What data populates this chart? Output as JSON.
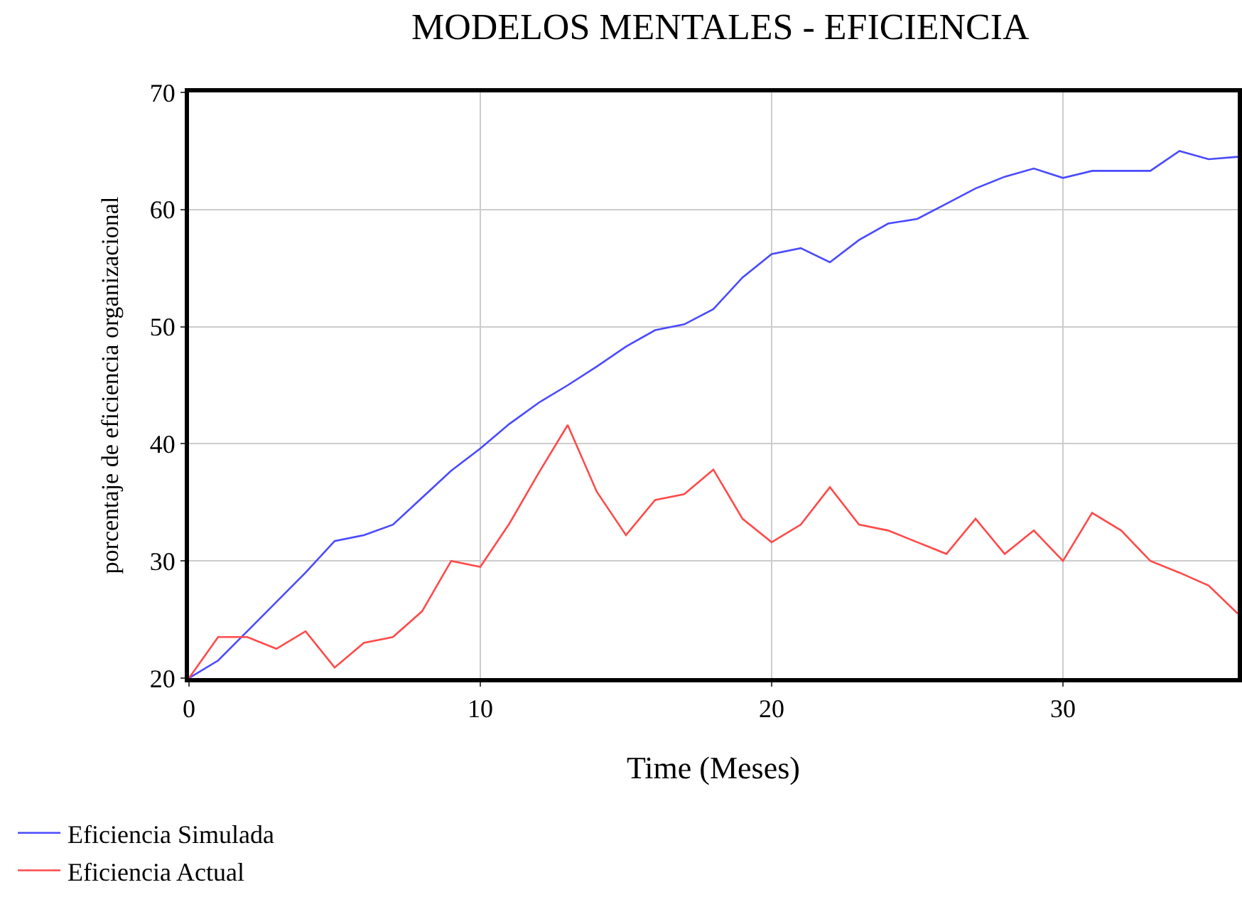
{
  "chart_data": {
    "type": "line",
    "title": "MODELOS MENTALES - EFICIENCIA",
    "xlabel": "Time (Meses)",
    "ylabel": "porcentaje de eficiencia organizacional",
    "x": [
      0,
      1,
      2,
      3,
      4,
      5,
      6,
      7,
      8,
      9,
      10,
      11,
      12,
      13,
      14,
      15,
      16,
      17,
      18,
      19,
      20,
      21,
      22,
      23,
      24,
      25,
      26,
      27,
      28,
      29,
      30,
      31,
      32,
      33,
      34,
      35,
      36
    ],
    "series": [
      {
        "name": "Eficiencia Simulada",
        "color": "#4a4aff",
        "values": [
          20,
          21.5,
          24,
          26.5,
          29,
          31.7,
          32.2,
          33.1,
          35.4,
          37.7,
          39.6,
          41.7,
          43.5,
          45,
          46.6,
          48.3,
          49.7,
          50.2,
          51.5,
          54.2,
          56.2,
          56.7,
          55.5,
          57.4,
          58.8,
          59.2,
          60.5,
          61.8,
          62.8,
          63.5,
          62.7,
          63.3,
          63.3,
          63.3,
          65,
          64.3,
          64.5
        ]
      },
      {
        "name": "Eficiencia Actual",
        "color": "#ff4a4a",
        "values": [
          20,
          23.5,
          23.5,
          22.5,
          24,
          20.9,
          23,
          23.5,
          25.7,
          30,
          29.5,
          33.2,
          37.5,
          41.6,
          35.9,
          32.2,
          35.2,
          35.7,
          37.8,
          33.6,
          31.6,
          33.1,
          36.3,
          33.1,
          32.6,
          31.6,
          30.6,
          33.6,
          30.6,
          32.6,
          30,
          34.1,
          32.6,
          30,
          29,
          27.9,
          25.5
        ]
      }
    ],
    "xlim": [
      0,
      36
    ],
    "ylim": [
      20,
      70
    ],
    "xticks": [
      0,
      10,
      20,
      30
    ],
    "yticks": [
      20,
      30,
      40,
      50,
      60,
      70
    ],
    "grid": true,
    "legend": "bottom",
    "marker": "none",
    "line_style": "solid"
  }
}
